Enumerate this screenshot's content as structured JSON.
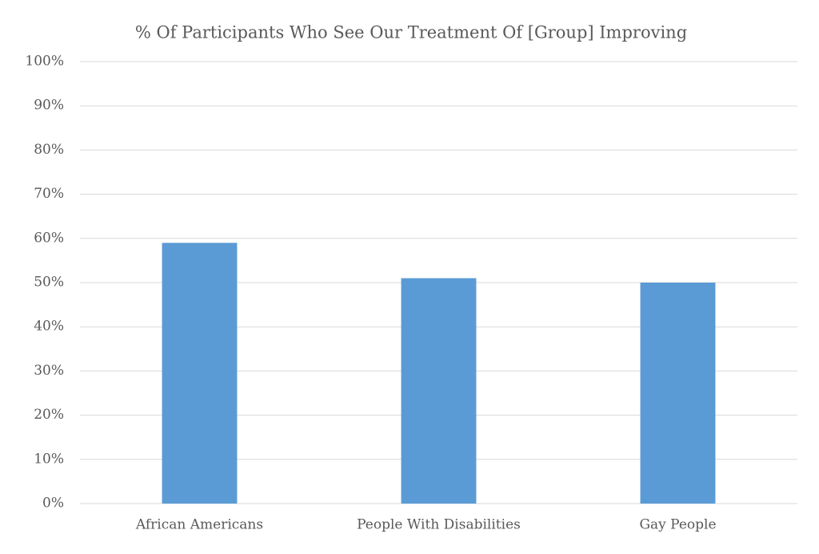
{
  "chart_data": {
    "type": "bar",
    "title": "% Of Participants Who See Our Treatment Of [Group] Improving",
    "categories": [
      "African Americans",
      "People With Disabilities",
      "Gay People"
    ],
    "values": [
      59,
      51,
      50
    ],
    "color": "#5b9bd5",
    "ylim": [
      0,
      100
    ],
    "yticks": [
      {
        "value": 0,
        "label": "0%"
      },
      {
        "value": 10,
        "label": "10%"
      },
      {
        "value": 20,
        "label": "20%"
      },
      {
        "value": 30,
        "label": "30%"
      },
      {
        "value": 40,
        "label": "40%"
      },
      {
        "value": 50,
        "label": "50%"
      },
      {
        "value": 60,
        "label": "60%"
      },
      {
        "value": 70,
        "label": "70%"
      },
      {
        "value": 80,
        "label": "80%"
      },
      {
        "value": 90,
        "label": "90%"
      },
      {
        "value": 100,
        "label": "100%"
      }
    ],
    "grid": true
  }
}
